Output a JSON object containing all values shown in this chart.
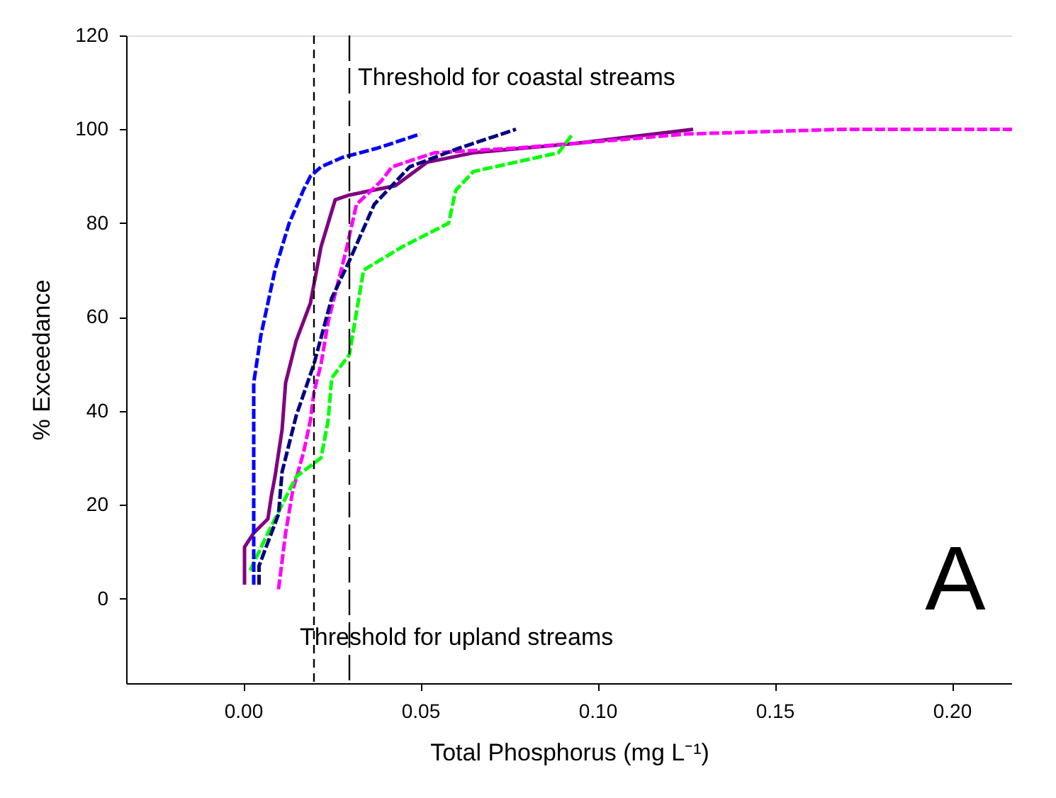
{
  "chart_data": {
    "type": "line",
    "xlabel": "Total Phosphorus (mg L⁻¹)",
    "ylabel": "% Exceedance",
    "xlim": [
      -0.033,
      0.217
    ],
    "ylim": [
      -18,
      120
    ],
    "xticks": [
      {
        "value": 0,
        "label": "0.00"
      },
      {
        "value": 0.05,
        "label": "0.05"
      },
      {
        "value": 0.1,
        "label": "0.10"
      },
      {
        "value": 0.15,
        "label": "0.15"
      },
      {
        "value": 0.2,
        "label": "0.20"
      }
    ],
    "yticks": [
      0,
      20,
      40,
      60,
      80,
      100,
      120
    ],
    "grid": false,
    "marker": "none",
    "series": [
      {
        "color": "#0000ff",
        "line_style": "dashed",
        "x": [
          0.003,
          0.003,
          0.005,
          0.009,
          0.013,
          0.017,
          0.019,
          0.022,
          0.028,
          0.038,
          0.05
        ],
        "values": [
          3,
          46,
          56,
          70,
          80,
          87,
          90,
          92,
          94,
          96,
          99
        ]
      },
      {
        "color": "#000080",
        "line_style": "dashed",
        "x": [
          0.0045,
          0.0045,
          0.007,
          0.01,
          0.011,
          0.015,
          0.02,
          0.025,
          0.03,
          0.037,
          0.047,
          0.061,
          0.077
        ],
        "values": [
          3,
          7,
          12,
          18,
          27,
          39,
          50,
          64,
          72,
          84,
          92,
          96,
          100
        ]
      },
      {
        "color": "#00ff00",
        "line_style": "dashed",
        "x": [
          0.002,
          0.007,
          0.015,
          0.022,
          0.024,
          0.025,
          0.03,
          0.032,
          0.034,
          0.045,
          0.058,
          0.06,
          0.065,
          0.083,
          0.089,
          0.093
        ],
        "values": [
          6,
          14,
          26,
          30,
          38,
          47,
          52,
          61,
          70,
          75,
          80,
          87,
          91,
          94,
          95,
          99
        ]
      },
      {
        "color": "#ff00ff",
        "line_style": "dashed",
        "x": [
          0.01,
          0.012,
          0.014,
          0.017,
          0.019,
          0.02,
          0.022,
          0.024,
          0.029,
          0.032,
          0.039,
          0.042,
          0.054,
          0.077,
          0.11,
          0.125,
          0.169,
          0.217
        ],
        "values": [
          2,
          14,
          23,
          31,
          38,
          44,
          50,
          59,
          74,
          84,
          89,
          92,
          95,
          96,
          98,
          99,
          100,
          100
        ]
      },
      {
        "color": "#800080",
        "line_style": "solid",
        "x": [
          0.0004,
          0.0004,
          0.003,
          0.007,
          0.008,
          0.009,
          0.011,
          0.012,
          0.015,
          0.019,
          0.022,
          0.026,
          0.03,
          0.043,
          0.052,
          0.065,
          0.094,
          0.127
        ],
        "values": [
          3,
          11,
          14,
          17,
          22,
          26,
          36,
          46,
          55,
          63,
          75,
          85,
          86,
          88,
          93,
          95,
          97,
          100
        ]
      }
    ],
    "ref_lines": [
      {
        "axis": "x",
        "value": 0.02,
        "label": "Threshold for upland streams",
        "color": "#000000",
        "line_style": "dashed"
      },
      {
        "axis": "x",
        "value": 0.03,
        "label": "Threshold for coastal streams",
        "color": "#000000",
        "line_style": "dashed"
      }
    ],
    "annotations": [
      "A"
    ]
  }
}
